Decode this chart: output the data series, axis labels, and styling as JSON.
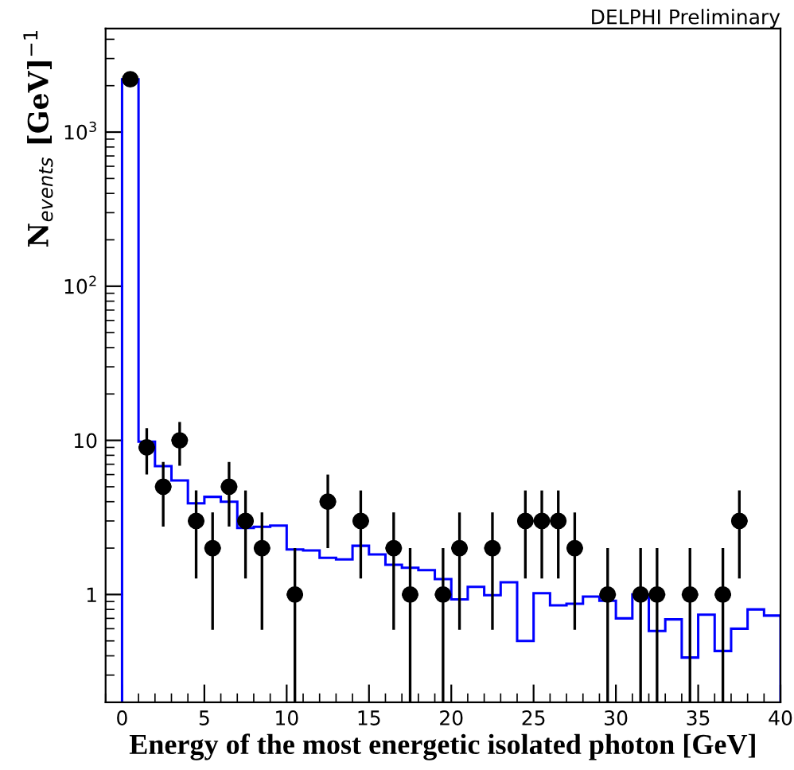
{
  "chart_data": {
    "type": "histogram",
    "title": "DELPHI Preliminary",
    "xlabel": "Energy of the most energetic isolated photon [GeV]",
    "ylabel": "N$_{events}$ [GeV]$^{−1}$",
    "log": "y",
    "xlim": [
      -1,
      40
    ],
    "xticks": [
      0,
      5,
      10,
      15,
      20,
      25,
      30,
      35,
      40
    ],
    "ylim": [
      0.2,
      4700
    ],
    "yticks": [
      {
        "value": 1,
        "label": "1"
      },
      {
        "value": 10,
        "label": "10"
      },
      {
        "value": 100,
        "label": "10$^{2}$"
      },
      {
        "value": 1000,
        "label": "10$^{3}$"
      }
    ],
    "grid": false,
    "legend": false,
    "series": [
      {
        "color": "#0000ff",
        "bins": [
          0,
          1,
          2,
          3,
          4,
          5,
          6,
          7,
          8,
          9,
          10,
          11,
          12,
          13,
          14,
          15,
          16,
          17,
          18,
          19,
          20,
          21,
          22,
          23,
          24,
          25,
          26,
          27,
          28,
          29,
          30,
          31,
          32,
          33,
          34,
          35,
          36,
          37,
          38,
          39,
          40
        ],
        "values": [
          2200,
          9.8,
          6.8,
          5.5,
          3.9,
          4.3,
          4.0,
          2.7,
          2.75,
          2.8,
          1.96,
          1.93,
          1.73,
          1.69,
          2.07,
          1.82,
          1.56,
          1.49,
          1.44,
          1.26,
          0.93,
          1.12,
          0.99,
          1.2,
          0.5,
          1.02,
          0.85,
          0.87,
          0.97,
          0.91,
          0.7,
          1.0,
          0.58,
          0.69,
          0.39,
          0.74,
          0.43,
          0.6,
          0.8,
          0.73
        ]
      },
      {
        "type": "scatter",
        "color": "#000000",
        "marker": "circle",
        "x": [
          0.5,
          1.5,
          2.5,
          3.5,
          4.5,
          5.5,
          6.5,
          7.5,
          8.5,
          10.5,
          12.5,
          14.5,
          16.5,
          17.5,
          19.5,
          20.5,
          22.5,
          24.5,
          25.5,
          26.5,
          27.5,
          29.5,
          31.5,
          32.5,
          34.5,
          36.5,
          37.5
        ],
        "values": [
          2200,
          9,
          5,
          10,
          3,
          2,
          5,
          3,
          2,
          1,
          4,
          3,
          2,
          1,
          1,
          2,
          2,
          3,
          3,
          3,
          2,
          1,
          1,
          1,
          1,
          1,
          3
        ],
        "errors": [
          47,
          3,
          2.24,
          3.16,
          1.73,
          1.41,
          2.24,
          1.73,
          1.41,
          [
            0.2,
            2
          ],
          2,
          1.73,
          1.41,
          [
            0.2,
            2
          ],
          [
            0.2,
            2
          ],
          1.41,
          1.41,
          1.73,
          1.73,
          1.73,
          1.41,
          [
            0.2,
            2
          ],
          [
            0.2,
            2
          ],
          [
            0.2,
            2
          ],
          [
            0.2,
            2
          ],
          [
            0.2,
            2
          ],
          1.73
        ],
        "xerrors": [
          0.5,
          0.5,
          0.5,
          0.5,
          0.5,
          0.5,
          0.5,
          0.5,
          0.5,
          0.5,
          0.5,
          0.5,
          0.5,
          0.5,
          0.5,
          0.5,
          0.5,
          0.5,
          0.5,
          0.5,
          0.5,
          0.5,
          0.5,
          0.5,
          0.5,
          0.5,
          0.5
        ]
      }
    ]
  }
}
